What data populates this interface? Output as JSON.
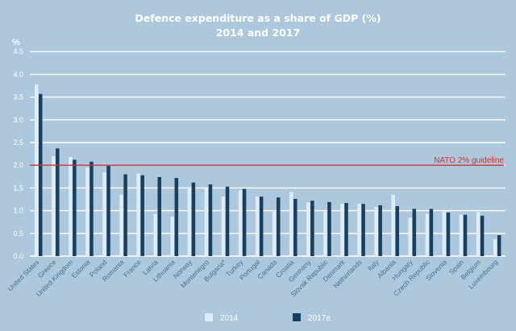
{
  "chart_data": {
    "type": "bar",
    "title": "Defence expenditure as a share of GDP (%)",
    "subtitle": "2014 and 2017",
    "ylabel": "%",
    "xlabel": "",
    "ylim": [
      0,
      4.5
    ],
    "yticks": [
      "0.0",
      "0.5",
      "1.0",
      "1.5",
      "2.0",
      "2.5",
      "3.0",
      "3.5",
      "4.0",
      "4.5"
    ],
    "grid": true,
    "legend_position": "bottom-center",
    "categories": [
      "United States",
      "Greece",
      "United Kingdom",
      "Estonia",
      "Poland",
      "Romania",
      "France",
      "Latvia",
      "Lithuania",
      "Norway",
      "Montenegro",
      "Bulgaria*",
      "Turkey",
      "Portugal",
      "Canada",
      "Croatia",
      "Germany",
      "Slovak Republic",
      "Denmark",
      "Netherlands",
      "Italy",
      "Albania",
      "Hungary",
      "Czech Republic",
      "Slovenia",
      "Spain",
      "Belgium",
      "Luxembourg"
    ],
    "series": [
      {
        "name": "2014",
        "color": "#ddeefa",
        "values": [
          3.78,
          2.2,
          2.18,
          1.95,
          1.84,
          1.35,
          1.82,
          0.93,
          0.87,
          1.49,
          1.5,
          1.31,
          1.45,
          1.31,
          1.01,
          1.41,
          1.18,
          0.98,
          1.15,
          1.15,
          1.08,
          1.35,
          0.85,
          0.93,
          0.98,
          0.91,
          0.97,
          0.37
        ]
      },
      {
        "name": "2017e",
        "color": "#173f5f",
        "values": [
          3.57,
          2.37,
          2.12,
          2.08,
          1.99,
          1.8,
          1.78,
          1.74,
          1.72,
          1.62,
          1.58,
          1.53,
          1.48,
          1.31,
          1.29,
          1.26,
          1.22,
          1.19,
          1.17,
          1.15,
          1.12,
          1.1,
          1.04,
          1.04,
          0.96,
          0.91,
          0.89,
          0.46
        ]
      }
    ],
    "reference_line": {
      "value": 2.0,
      "label": "NATO 2% guideline",
      "color": "#c8332f"
    }
  },
  "colors": {
    "background": "#adc8dc",
    "grid": "#ffffff",
    "xtick_text": "#4d6f8c"
  }
}
